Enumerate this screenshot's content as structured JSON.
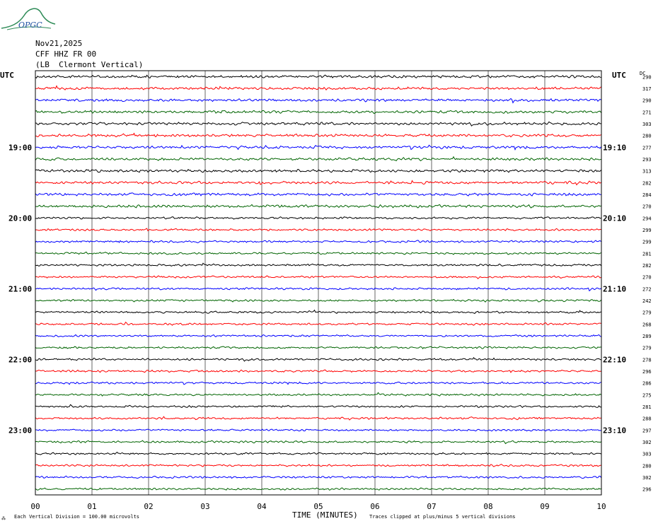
{
  "logo": {
    "text": "OPGC"
  },
  "header": {
    "date": "Nov21,2025",
    "station": "CFF HHZ FR 00",
    "location": "(LB  Clermont Vertical)"
  },
  "chart_data": {
    "type": "line",
    "title": "",
    "xlabel": "TIME (MINUTES)",
    "ylabel_left": "UTC",
    "ylabel_right": "UTC",
    "dc_label": "DC",
    "x_ticks": [
      "00",
      "01",
      "02",
      "03",
      "04",
      "05",
      "06",
      "07",
      "08",
      "09",
      "10"
    ],
    "xlim": [
      0,
      10
    ],
    "left_time_labels": [
      {
        "row": 6,
        "text": "19:00"
      },
      {
        "row": 12,
        "text": "20:00"
      },
      {
        "row": 18,
        "text": "21:00"
      },
      {
        "row": 24,
        "text": "22:00"
      },
      {
        "row": 30,
        "text": "23:00"
      }
    ],
    "right_time_labels": [
      {
        "row": 6,
        "text": "19:10"
      },
      {
        "row": 12,
        "text": "20:10"
      },
      {
        "row": 18,
        "text": "21:10"
      },
      {
        "row": 24,
        "text": "22:10"
      },
      {
        "row": 30,
        "text": "23:10"
      }
    ],
    "dc_values": [
      "290",
      "317",
      "290",
      "271",
      "303",
      "280",
      "277",
      "293",
      "313",
      "282",
      "284",
      "270",
      "294",
      "299",
      "299",
      "281",
      "282",
      "270",
      "272",
      "242",
      "279",
      "268",
      "289",
      "279",
      "278",
      "296",
      "286",
      "275",
      "281",
      "288",
      "297",
      "302",
      "303",
      "280",
      "302",
      "296"
    ],
    "trace_colors": [
      "#000000",
      "#ff0000",
      "#0000ff",
      "#006400"
    ],
    "footer_left": "Each Vertical Division =  100.00 microvolts",
    "footer_right": "Traces clipped at plus/minus 5 vertical divisions",
    "grid": "vertical",
    "rows": 36
  }
}
